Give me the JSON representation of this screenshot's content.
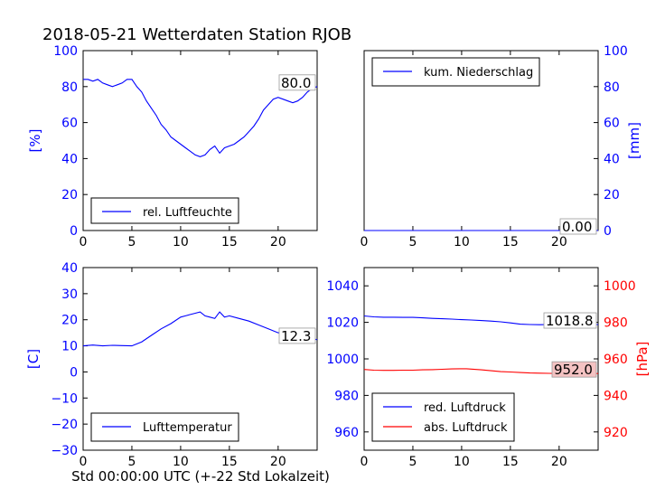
{
  "page_title": "2018-05-21 Wetterdaten Station RJOB",
  "x_axis_caption": "Std 00:00:00 UTC (+-22 Std Lokalzeit)",
  "colors": {
    "blue": "#0000ff",
    "red": "#ff0000",
    "black": "#000000",
    "label_box_red": "#f4c2c2"
  },
  "chart_data": [
    {
      "id": "humidity",
      "type": "line",
      "xlim": [
        0,
        24
      ],
      "ylim": [
        0,
        100
      ],
      "x_ticks": [
        0,
        5,
        10,
        15,
        20
      ],
      "y_ticks": [
        0,
        20,
        40,
        60,
        80,
        100
      ],
      "ylabel": "[%]",
      "last_value_label": "80.0",
      "legend": "lower-left",
      "series": [
        {
          "name": "rel. Luftfeuchte",
          "color": "#0000ff",
          "x": [
            0,
            0.5,
            1,
            1.5,
            2,
            2.5,
            3,
            3.5,
            4,
            4.5,
            5,
            5.5,
            6,
            6.5,
            7,
            7.5,
            8,
            8.5,
            9,
            9.5,
            10,
            10.5,
            11,
            11.5,
            12,
            12.5,
            13,
            13.5,
            14,
            14.5,
            15,
            15.5,
            16,
            16.5,
            17,
            17.5,
            18,
            18.5,
            19,
            19.5,
            20,
            20.5,
            21,
            21.5,
            22,
            22.5,
            23,
            23.5,
            24
          ],
          "values": [
            84,
            84,
            83,
            84,
            82,
            81,
            80,
            81,
            82,
            84,
            84,
            80,
            77,
            72,
            68,
            64,
            59,
            56,
            52,
            50,
            48,
            46,
            44,
            42,
            41,
            42,
            45,
            47,
            43,
            46,
            47,
            48,
            50,
            52,
            55,
            58,
            62,
            67,
            70,
            73,
            74,
            73,
            72,
            71,
            72,
            74,
            77,
            79,
            80
          ]
        }
      ]
    },
    {
      "id": "precipitation",
      "type": "line",
      "xlim": [
        0,
        24
      ],
      "ylim": [
        0,
        100
      ],
      "x_ticks": [
        0,
        5,
        10,
        15,
        20
      ],
      "y_ticks": [
        0,
        20,
        40,
        60,
        80,
        100
      ],
      "ylabel": "[mm]",
      "last_value_label": "0.00",
      "legend": "top-left",
      "series": [
        {
          "name": "kum. Niederschlag",
          "color": "#0000ff",
          "x": [
            0,
            24
          ],
          "values": [
            0,
            0
          ]
        }
      ]
    },
    {
      "id": "temperature",
      "type": "line",
      "xlim": [
        0,
        24
      ],
      "ylim": [
        -30,
        40
      ],
      "x_ticks": [
        0,
        5,
        10,
        15,
        20
      ],
      "y_ticks": [
        -30,
        -20,
        -10,
        0,
        10,
        20,
        30,
        40
      ],
      "ylabel": "[C]",
      "xlabel": "Std 00:00:00 UTC (+-22 Std Lokalzeit)",
      "last_value_label": "12.3",
      "legend": "lower-left",
      "series": [
        {
          "name": "Lufttemperatur",
          "color": "#0000ff",
          "x": [
            0,
            1,
            2,
            3,
            4,
            5,
            6,
            7,
            8,
            9,
            10,
            10.5,
            11,
            11.5,
            12,
            12.5,
            13,
            13.5,
            14,
            14.5,
            15,
            16,
            17,
            18,
            19,
            20,
            21,
            22,
            23,
            24
          ],
          "values": [
            10,
            10.3,
            10,
            10.2,
            10.1,
            10,
            11.5,
            14,
            16.5,
            18.5,
            21,
            21.5,
            22,
            22.5,
            23,
            21.5,
            21,
            20.5,
            23,
            21,
            21.5,
            20.5,
            19.5,
            18,
            16.5,
            15,
            14.5,
            14,
            13.5,
            12.3
          ]
        }
      ]
    },
    {
      "id": "pressure",
      "type": "line",
      "xlim": [
        0,
        24
      ],
      "ylim": [
        950,
        1050
      ],
      "y_ticks": [
        960,
        980,
        1000,
        1020,
        1040
      ],
      "ylim_right": [
        910,
        1010
      ],
      "y_ticks_right": [
        920,
        940,
        960,
        980,
        1000
      ],
      "x_ticks": [
        0,
        5,
        10,
        15,
        20
      ],
      "ylabel_right": "[hPa]",
      "last_value_label": "1018.8",
      "last_value_label_right": "952.0",
      "legend": "lower-left",
      "series": [
        {
          "name": "red. Luftdruck",
          "color": "#0000ff",
          "axis": "left",
          "x": [
            0,
            1,
            2,
            3,
            4,
            5,
            6,
            7,
            8,
            9,
            10,
            11,
            12,
            13,
            14,
            15,
            16,
            17,
            18,
            19,
            20,
            21,
            22,
            23,
            24
          ],
          "values": [
            1023.5,
            1023,
            1022.8,
            1022.8,
            1022.7,
            1022.7,
            1022.5,
            1022.2,
            1022,
            1021.8,
            1021.5,
            1021.3,
            1021,
            1020.7,
            1020.3,
            1019.7,
            1019,
            1018.8,
            1018.7,
            1018.8,
            1018.8,
            1018.9,
            1018.8,
            1018.8,
            1018.8
          ]
        },
        {
          "name": "abs. Luftdruck",
          "color": "#ff0000",
          "axis": "right",
          "x": [
            0,
            1,
            2,
            3,
            4,
            5,
            6,
            7,
            8,
            9,
            10,
            10.5,
            11,
            12,
            13,
            14,
            15,
            16,
            17,
            18,
            19,
            20,
            21,
            22,
            23,
            24
          ],
          "values": [
            954.2,
            953.8,
            953.7,
            953.7,
            953.8,
            953.8,
            954,
            954.1,
            954.3,
            954.5,
            954.6,
            954.6,
            954.4,
            954,
            953.5,
            953,
            952.8,
            952.5,
            952.3,
            952.2,
            952.1,
            952,
            952,
            952,
            952,
            952
          ]
        }
      ]
    }
  ]
}
